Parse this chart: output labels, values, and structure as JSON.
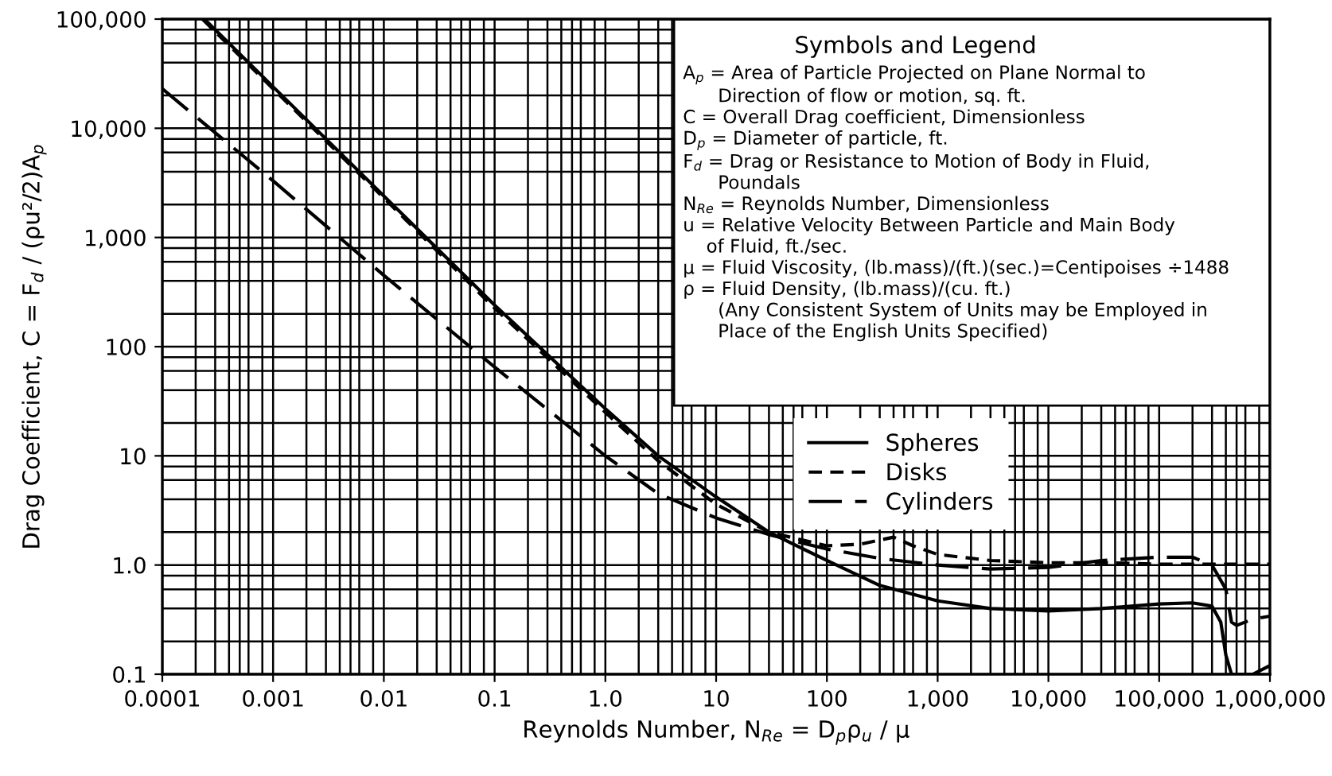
{
  "chart_data": {
    "type": "line",
    "xlabel": "Reynolds Number, N$_{Re}$ = D$_{p}$ρ$_{u}$ / μ",
    "ylabel": "Drag Coefficient, C = F$_{d}$ / (ρu²/2)A$_{p}$",
    "log": "xy",
    "grid": true,
    "legend": "bottom",
    "marker": "none",
    "xlim": [
      0.0001,
      1000000
    ],
    "ylim": [
      0.1,
      100000
    ],
    "xticks": [
      {
        "value": 0.0001,
        "label": "0.0001"
      },
      {
        "value": 0.001,
        "label": "0.001"
      },
      {
        "value": 0.01,
        "label": "0.01"
      },
      {
        "value": 0.1,
        "label": "0.1"
      },
      {
        "value": 1,
        "label": "1.0"
      },
      {
        "value": 10,
        "label": "10"
      },
      {
        "value": 100,
        "label": "100"
      },
      {
        "value": 1000,
        "label": "1,000"
      },
      {
        "value": 10000,
        "label": "10,000"
      },
      {
        "value": 100000,
        "label": "100,000"
      },
      {
        "value": 1000000,
        "label": "1,000,000"
      }
    ],
    "yticks": [
      {
        "value": 0.1,
        "label": "0.1"
      },
      {
        "value": 1,
        "label": "1.0"
      },
      {
        "value": 10,
        "label": "10"
      },
      {
        "value": 100,
        "label": "100"
      },
      {
        "value": 1000,
        "label": "1,000"
      },
      {
        "value": 10000,
        "label": "10,000"
      },
      {
        "value": 100000,
        "label": "100,000"
      }
    ],
    "series": [
      {
        "name": "Spheres",
        "color": "#000000",
        "line_style": "solid",
        "x": [
          0.00024,
          0.001,
          0.01,
          0.1,
          1,
          3,
          10,
          30,
          100,
          300,
          1000,
          3000,
          10000,
          30000,
          100000,
          200000,
          300000,
          360000,
          400000,
          450000,
          550000,
          700000,
          1000000
        ],
        "values": [
          100000,
          24000,
          2400,
          240,
          27,
          10,
          4.2,
          2,
          1.1,
          0.65,
          0.47,
          0.4,
          0.38,
          0.4,
          0.44,
          0.45,
          0.42,
          0.3,
          0.15,
          0.1,
          0.1,
          0.1,
          0.12
        ]
      },
      {
        "name": "Disks",
        "color": "#000000",
        "line_style": "dashed",
        "x": [
          0.00023,
          0.001,
          0.01,
          0.1,
          1,
          3,
          10,
          30,
          100,
          200,
          400,
          600,
          1000,
          3000,
          10000,
          30000,
          100000,
          300000,
          1000000
        ],
        "values": [
          100000,
          23000,
          2300,
          225,
          25,
          9,
          3.6,
          2,
          1.5,
          1.55,
          1.8,
          1.5,
          1.25,
          1.1,
          1.05,
          1.05,
          1.02,
          1.02,
          1.02
        ]
      },
      {
        "name": "Cylinders",
        "color": "#000000",
        "line_style": "dashed",
        "x": [
          0.0001,
          0.001,
          0.01,
          0.1,
          1,
          3,
          10,
          30,
          100,
          300,
          1000,
          3000,
          10000,
          30000,
          100000,
          200000,
          300000,
          400000,
          450000,
          500000,
          700000,
          1000000
        ],
        "values": [
          23000,
          3300,
          450,
          65,
          10,
          4.5,
          2.7,
          1.9,
          1.4,
          1.15,
          1.0,
          0.92,
          0.95,
          1.1,
          1.18,
          1.18,
          1.0,
          0.6,
          0.3,
          0.28,
          0.32,
          0.34
        ]
      }
    ],
    "annotations": [
      "Symbols and Legend",
      "A$_{p}$ = Area of Particle Projected on Plane Normal to\n      Direction of flow or motion, sq. ft.",
      "C = Overall Drag coefficient, Dimensionless",
      "D$_{p}$ = Diameter of particle, ft.",
      "F$_{d}$ = Drag or Resistance to Motion of Body in Fluid,\n      Poundals",
      "N$_{Re}$ = Reynolds Number, Dimensionless",
      "u = Relative Velocity Between Particle and Main Body\n    of Fluid, ft./sec.",
      "μ = Fluid Viscosity, (lb.mass)/(ft.)(sec.)=Centipoises ÷1488",
      "ρ = Fluid Density, (lb.mass)/(cu. ft.)\n      (Any Consistent System of Units may be Employed in\n      Place of the English Units Specified)"
    ]
  }
}
